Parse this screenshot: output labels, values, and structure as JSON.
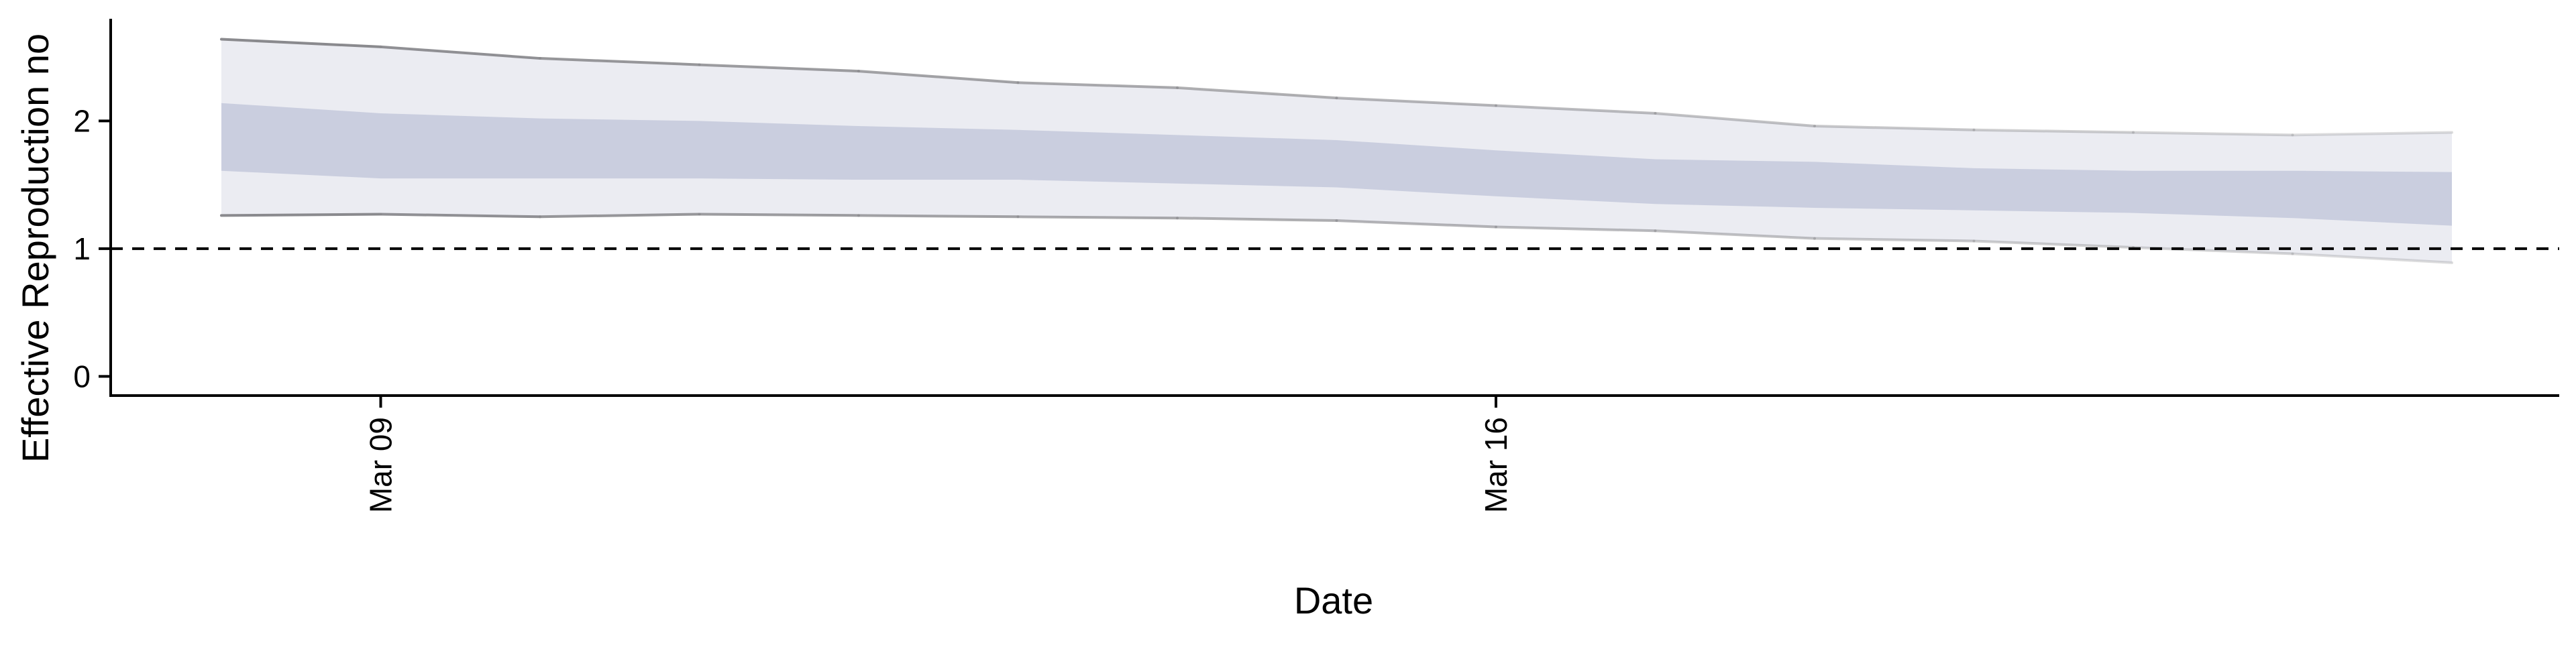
{
  "chart_data": {
    "type": "area",
    "title": "",
    "xlabel": "Date",
    "ylabel": "Effective Reproduction no",
    "x": [
      "2020-03-08",
      "2020-03-09",
      "2020-03-10",
      "2020-03-11",
      "2020-03-12",
      "2020-03-13",
      "2020-03-14",
      "2020-03-15",
      "2020-03-16",
      "2020-03-17",
      "2020-03-18",
      "2020-03-19",
      "2020-03-20",
      "2020-03-21",
      "2020-03-22"
    ],
    "x_ticks": [
      {
        "date": "2020-03-09",
        "label": "Mar 09"
      },
      {
        "date": "2020-03-16",
        "label": "Mar 16"
      }
    ],
    "y_ticks": [
      0,
      1,
      2
    ],
    "ylim": [
      -0.15,
      2.8
    ],
    "reference_line": {
      "y": 1,
      "style": "dashed",
      "color": "#000000"
    },
    "series": [
      {
        "type": "band",
        "role": "outer interval",
        "lower": [
          1.26,
          1.27,
          1.25,
          1.27,
          1.26,
          1.25,
          1.24,
          1.22,
          1.17,
          1.14,
          1.08,
          1.06,
          1.01,
          0.96,
          0.89
        ],
        "upper": [
          2.64,
          2.58,
          2.49,
          2.44,
          2.39,
          2.3,
          2.26,
          2.18,
          2.12,
          2.06,
          1.96,
          1.93,
          1.91,
          1.89,
          1.91
        ],
        "color": "#e4e6ee"
      },
      {
        "type": "band",
        "role": "inner interval",
        "lower": [
          1.61,
          1.55,
          1.55,
          1.55,
          1.54,
          1.54,
          1.51,
          1.48,
          1.41,
          1.35,
          1.32,
          1.3,
          1.28,
          1.24,
          1.18
        ],
        "upper": [
          2.14,
          2.06,
          2.02,
          2.0,
          1.96,
          1.93,
          1.89,
          1.85,
          1.77,
          1.7,
          1.68,
          1.63,
          1.61,
          1.61,
          1.6
        ],
        "color": "#c4c9dc"
      }
    ],
    "grid": false,
    "legend": "none"
  },
  "colors": {
    "outer_band": "#e4e6ee",
    "inner_band": "#c4c9dc",
    "outline": "#8a8a8e",
    "axis": "#000000"
  }
}
